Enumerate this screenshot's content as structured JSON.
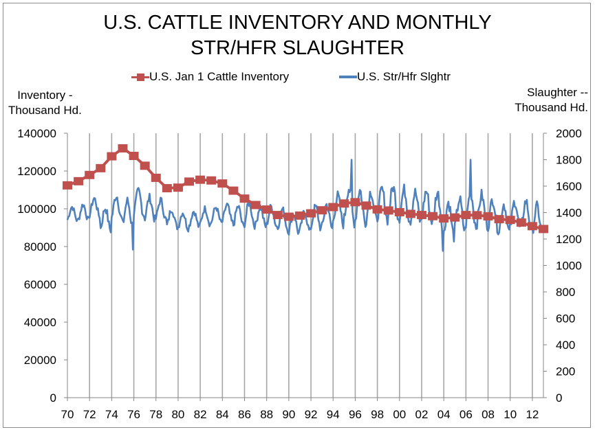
{
  "header": {
    "title_line1": "U.S. CATTLE INVENTORY AND MONTHLY",
    "title_line2": "STR/HFR SLAUGHTER"
  },
  "legend": {
    "inventory_label": "U.S. Jan 1 Cattle Inventory",
    "slaughter_label": "U.S. Str/Hfr Slghtr"
  },
  "axes": {
    "left_label_line1": "Inventory -",
    "left_label_line2": "Thousand Hd.",
    "right_label_line1": "Slaughter --",
    "right_label_line2": "Thousand Hd."
  },
  "colors": {
    "inventory": "#c0504d",
    "slaughter": "#4f81bd",
    "grid": "#a6a6a6"
  },
  "chart_data": {
    "type": "line",
    "title": "U.S. CATTLE INVENTORY AND MONTHLY STR/HFR SLAUGHTER",
    "x_tick_labels": [
      "70",
      "72",
      "74",
      "76",
      "78",
      "80",
      "82",
      "84",
      "86",
      "88",
      "90",
      "92",
      "94",
      "96",
      "98",
      "00",
      "02",
      "04",
      "06",
      "08",
      "10",
      "12"
    ],
    "xlim": [
      1970,
      2013
    ],
    "left_axis": {
      "ylim": [
        0,
        140000
      ],
      "ticks": [
        0,
        20000,
        40000,
        60000,
        80000,
        100000,
        120000,
        140000
      ]
    },
    "right_axis": {
      "ylim": [
        0,
        2000
      ],
      "ticks": [
        0,
        200,
        400,
        600,
        800,
        1000,
        1200,
        1400,
        1600,
        1800,
        2000
      ]
    },
    "grid": "vertical",
    "legend_position": "top",
    "series": [
      {
        "name": "U.S. Jan 1 Cattle Inventory",
        "axis": "left",
        "x": [
          1970,
          1971,
          1972,
          1973,
          1974,
          1975,
          1976,
          1977,
          1978,
          1979,
          1980,
          1981,
          1982,
          1983,
          1984,
          1985,
          1986,
          1987,
          1988,
          1989,
          1990,
          1991,
          1992,
          1993,
          1994,
          1995,
          1996,
          1997,
          1998,
          1999,
          2000,
          2001,
          2002,
          2003,
          2004,
          2005,
          2006,
          2007,
          2008,
          2009,
          2010,
          2011,
          2012,
          2013
        ],
        "values": [
          112400,
          114600,
          117900,
          121500,
          127800,
          132000,
          128000,
          122800,
          116400,
          110900,
          111200,
          114400,
          115400,
          115000,
          113400,
          109600,
          105400,
          102000,
          99600,
          96700,
          95800,
          96400,
          97600,
          99200,
          100900,
          102800,
          103500,
          101700,
          99700,
          99100,
          98200,
          97300,
          96700,
          96100,
          94900,
          95400,
          96700,
          96600,
          96000,
          94500,
          94100,
          92700,
          90800,
          89300
        ]
      },
      {
        "name": "U.S. Str/Hfr Slghtr",
        "axis": "right",
        "monthly_annual_profile": [
          {
            "year": 1970,
            "mean": 1390,
            "amp": 70
          },
          {
            "year": 1971,
            "mean": 1400,
            "amp": 80
          },
          {
            "year": 1972,
            "mean": 1440,
            "amp": 90
          },
          {
            "year": 1973,
            "mean": 1350,
            "amp": 110
          },
          {
            "year": 1974,
            "mean": 1440,
            "amp": 120
          },
          {
            "year": 1975,
            "mean": 1390,
            "amp": 130
          },
          {
            "year": 1976,
            "mean": 1470,
            "amp": 120
          },
          {
            "year": 1977,
            "mean": 1430,
            "amp": 110
          },
          {
            "year": 1978,
            "mean": 1420,
            "amp": 100
          },
          {
            "year": 1979,
            "mean": 1360,
            "amp": 90
          },
          {
            "year": 1980,
            "mean": 1340,
            "amp": 80
          },
          {
            "year": 1981,
            "mean": 1350,
            "amp": 80
          },
          {
            "year": 1982,
            "mean": 1370,
            "amp": 80
          },
          {
            "year": 1983,
            "mean": 1380,
            "amp": 80
          },
          {
            "year": 1984,
            "mean": 1390,
            "amp": 90
          },
          {
            "year": 1985,
            "mean": 1370,
            "amp": 100
          },
          {
            "year": 1986,
            "mean": 1390,
            "amp": 110
          },
          {
            "year": 1987,
            "mean": 1370,
            "amp": 100
          },
          {
            "year": 1988,
            "mean": 1370,
            "amp": 100
          },
          {
            "year": 1989,
            "mean": 1350,
            "amp": 100
          },
          {
            "year": 1990,
            "mean": 1320,
            "amp": 100
          },
          {
            "year": 1991,
            "mean": 1330,
            "amp": 100
          },
          {
            "year": 1992,
            "mean": 1360,
            "amp": 110
          },
          {
            "year": 1993,
            "mean": 1370,
            "amp": 120
          },
          {
            "year": 1994,
            "mean": 1420,
            "amp": 140
          },
          {
            "year": 1995,
            "mean": 1460,
            "amp": 170
          },
          {
            "year": 1996,
            "mean": 1450,
            "amp": 160
          },
          {
            "year": 1997,
            "mean": 1450,
            "amp": 150
          },
          {
            "year": 1998,
            "mean": 1460,
            "amp": 150
          },
          {
            "year": 1999,
            "mean": 1480,
            "amp": 150
          },
          {
            "year": 2000,
            "mean": 1460,
            "amp": 150
          },
          {
            "year": 2001,
            "mean": 1440,
            "amp": 150
          },
          {
            "year": 2002,
            "mean": 1450,
            "amp": 150
          },
          {
            "year": 2003,
            "mean": 1430,
            "amp": 160
          },
          {
            "year": 2004,
            "mean": 1350,
            "amp": 170
          },
          {
            "year": 2005,
            "mean": 1380,
            "amp": 160
          },
          {
            "year": 2006,
            "mean": 1430,
            "amp": 170
          },
          {
            "year": 2007,
            "mean": 1420,
            "amp": 150
          },
          {
            "year": 2008,
            "mean": 1390,
            "amp": 150
          },
          {
            "year": 2009,
            "mean": 1360,
            "amp": 140
          },
          {
            "year": 2010,
            "mean": 1380,
            "amp": 140
          },
          {
            "year": 2011,
            "mean": 1380,
            "amp": 140
          },
          {
            "year": 2012,
            "mean": 1340,
            "amp": 140
          }
        ],
        "notable_points": [
          {
            "x": 1975.9,
            "value": 1120
          },
          {
            "x": 1995.7,
            "value": 1800
          },
          {
            "x": 2003.9,
            "value": 1110
          },
          {
            "x": 2006.4,
            "value": 1800
          }
        ]
      }
    ]
  }
}
